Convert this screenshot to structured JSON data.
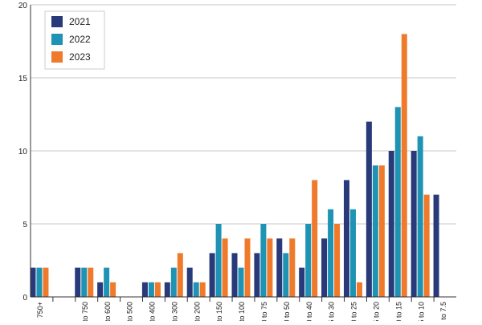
{
  "chart_data": {
    "type": "bar",
    "title": "",
    "xlabel": "",
    "ylabel": "",
    "ylim": [
      0,
      20
    ],
    "yticks": [
      0,
      5,
      10,
      15,
      20
    ],
    "grid": "horizontal",
    "legend_position": "top-left",
    "categories": [
      "750+",
      "",
      "to 750",
      "to 600",
      "to 500",
      "to 400",
      "to 300",
      "to 200",
      "to 150",
      "to 100",
      "0 to 75",
      "0 to 50",
      "0 to 40",
      "5 to 30",
      "0 to 25",
      "5 to 20",
      "0 to 15",
      "5 to 10",
      "., to 7.5"
    ],
    "series": [
      {
        "name": "2021",
        "color": "#283a7a",
        "values": [
          2,
          0,
          2,
          1,
          0,
          1,
          1,
          2,
          3,
          3,
          3,
          4,
          2,
          4,
          8,
          12,
          10,
          10,
          7
        ]
      },
      {
        "name": "2022",
        "color": "#1f93b3",
        "values": [
          2,
          0,
          2,
          2,
          0,
          1,
          2,
          1,
          5,
          2,
          5,
          3,
          5,
          6,
          6,
          9,
          13,
          11,
          0
        ]
      },
      {
        "name": "2023",
        "color": "#ef7a2b",
        "values": [
          2,
          0,
          2,
          1,
          0,
          1,
          3,
          1,
          4,
          4,
          4,
          4,
          8,
          5,
          1,
          9,
          18,
          7,
          0
        ]
      }
    ]
  }
}
